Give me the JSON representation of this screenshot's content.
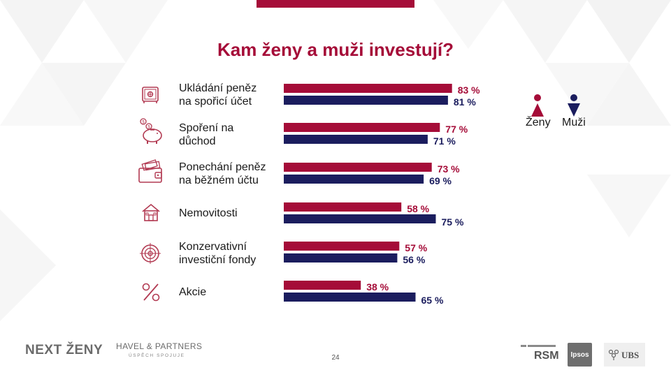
{
  "slide": {
    "title": "Kam ženy a muži investují?",
    "page_number": "24"
  },
  "colors": {
    "women": "#A50C38",
    "men": "#1B1D5E",
    "title": "#A50C38",
    "icon": "#B23A52"
  },
  "legend": {
    "women_label": "Ženy",
    "men_label": "Muži"
  },
  "rows": [
    {
      "line1": "Ukládání peněz",
      "line2": "na spořicí účet",
      "icon": "safe-icon"
    },
    {
      "line1": "Spoření na",
      "line2": "důchod",
      "icon": "piggy-bank-icon"
    },
    {
      "line1": "Ponechání peněz",
      "line2": "na běžném účtu",
      "icon": "wallet-icon"
    },
    {
      "line1": "Nemovitosti",
      "line2": "",
      "icon": "house-icon"
    },
    {
      "line1": "Konzervativní",
      "line2": "investiční fondy",
      "icon": "target-icon"
    },
    {
      "line1": "Akcie",
      "line2": "",
      "icon": "percent-icon"
    }
  ],
  "chart_data": {
    "type": "bar",
    "orientation": "horizontal",
    "categories": [
      "Ukládání peněz na spořicí účet",
      "Spoření na důchod",
      "Ponechání peněz na běžném účtu",
      "Nemovitosti",
      "Konzervativní investiční fondy",
      "Akcie"
    ],
    "series": [
      {
        "name": "Ženy",
        "values": [
          83,
          77,
          73,
          58,
          57,
          38
        ],
        "labels": [
          "83 %",
          "77 %",
          "73 %",
          "58 %",
          "57 %",
          "38 %"
        ]
      },
      {
        "name": "Muži",
        "values": [
          81,
          71,
          69,
          75,
          56,
          65
        ],
        "labels": [
          "81 %",
          "71 %",
          "69 %",
          "75 %",
          "56 %",
          "65 %"
        ]
      }
    ],
    "title": "Kam ženy a muži investují?",
    "xlim": [
      0,
      100
    ],
    "grid": false,
    "legend": "top-right"
  },
  "footer": {
    "next_zeny": "NEXT ŽENY",
    "havel": "HAVEL & PARTNERS",
    "havel_tagline": "ÚSPĚCH SPOJUJE",
    "rsm": "RSM",
    "ipsos": "Ipsos",
    "ubs": "UBS"
  }
}
